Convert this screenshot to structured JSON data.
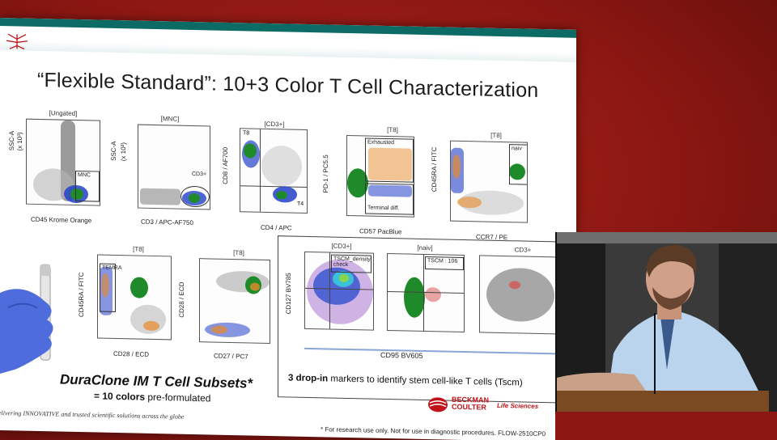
{
  "slide": {
    "title": "“Flexible Standard”: 10+3 Color T Cell Characterization",
    "panels_top": [
      {
        "gate": "[Ungated]",
        "x": "CD45 Krome Orange",
        "y": "SSC-A",
        "yunit": "(x 10³)",
        "gate_name": "MNC"
      },
      {
        "gate": "[MNC]",
        "x": "CD3 / APC-AF750",
        "y": "SSC-A",
        "yunit": "(x 10³)",
        "gate_name": "CD3+"
      },
      {
        "gate": "[CD3+]",
        "x": "CD4 / APC",
        "y": "CD8 / AF700",
        "q1": "T8",
        "q2": "T4"
      },
      {
        "gate": "[T8]",
        "x": "CD57 PacBlue",
        "y": "PD-1 / PC5.5",
        "g1": "Exhausted",
        "g2": "Terminal diff."
      },
      {
        "gate": "[T8]",
        "x": "CCR7 / PE",
        "y": "CD45RA / FITC",
        "gate_name": "naiv"
      }
    ],
    "panels_bottom": [
      {
        "gate": "[T8]",
        "x": "CD28 / ECD",
        "y": "CD45RA / FITC",
        "gate_name": "TEMRA"
      },
      {
        "gate": "[T8]",
        "x": "CD27 / PC7",
        "y": "CD28 / ECD"
      }
    ],
    "tscm_panels": [
      {
        "gate": "[CD3+]",
        "y": "CD127 BV785",
        "gate_name": "TSCM_density check"
      },
      {
        "gate": "[naiv]",
        "gate_name": "TSCM : 106"
      },
      {
        "gate": "CD3+"
      }
    ],
    "tscm_xlabel": "CD95 BV605",
    "tscm_caption_bold": "3 drop-in",
    "tscm_caption_rest": " markers to identify stem cell-like T cells (Tscm)",
    "duraclone_title": "DuraClone IM T Cell Subsets*",
    "duraclone_sub_bold": "= 10 colors",
    "duraclone_sub_rest": " pre-formulated",
    "brand_line1": "BECKMAN",
    "brand_line2": "COULTER",
    "brand_division": "Life Sciences",
    "tagline": "elivering INNOVATIVE and trusted scientific solutions across the globe",
    "footnote": "* For research use only. Not for use in diagnostic procedures. FLOW-2510CP0"
  },
  "colors": {
    "background": "#8c1712",
    "slide_accent": "#0c6b65",
    "brand_red": "#c0141a",
    "green_events": "#1f8a2a",
    "blue_events": "#2240c8",
    "orange_events": "#e8892a"
  }
}
